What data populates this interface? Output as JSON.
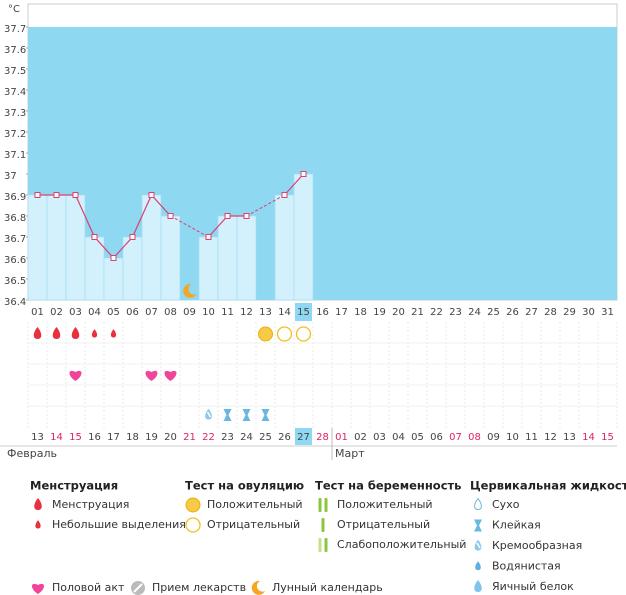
{
  "unit": "°C",
  "chart_data": {
    "type": "line",
    "categories": [
      "01",
      "02",
      "03",
      "04",
      "05",
      "06",
      "07",
      "08",
      "09",
      "10",
      "11",
      "12",
      "13",
      "14",
      "15",
      "16",
      "17",
      "18",
      "19",
      "20",
      "21",
      "22",
      "23",
      "24",
      "25",
      "26",
      "27",
      "28",
      "29",
      "30",
      "31"
    ],
    "values": [
      36.9,
      36.9,
      36.9,
      36.7,
      36.6,
      36.7,
      36.9,
      36.8,
      null,
      36.7,
      36.8,
      36.8,
      null,
      36.9,
      37,
      null,
      null,
      null,
      null,
      null,
      null,
      null,
      null,
      null,
      null,
      null,
      null,
      null,
      null,
      null,
      null
    ],
    "ylim": [
      36.4,
      37.7
    ],
    "yticks": [
      36.4,
      36.5,
      36.6,
      36.7,
      36.8,
      36.9,
      37,
      37.1,
      37.2,
      37.3,
      37.4,
      37.5,
      37.6,
      37.7
    ],
    "color": "#d9416f",
    "highlight_index": 14
  },
  "markers": [
    {
      "day": "01",
      "row": 0,
      "icon": "heavy"
    },
    {
      "day": "02",
      "row": 0,
      "icon": "heavy"
    },
    {
      "day": "03",
      "row": 0,
      "icon": "heavy"
    },
    {
      "day": "04",
      "row": 0,
      "icon": "light"
    },
    {
      "day": "05",
      "row": 0,
      "icon": "light"
    },
    {
      "day": "13",
      "row": 0,
      "icon": "positive"
    },
    {
      "day": "14",
      "row": 0,
      "icon": "negative"
    },
    {
      "day": "15",
      "row": 0,
      "icon": "negative"
    },
    {
      "day": "03",
      "row": 2,
      "icon": "sex"
    },
    {
      "day": "07",
      "row": 2,
      "icon": "sex"
    },
    {
      "day": "08",
      "row": 2,
      "icon": "sex"
    },
    {
      "day": "10",
      "row": 4,
      "icon": "creamy"
    },
    {
      "day": "11",
      "row": 4,
      "icon": "sticky"
    },
    {
      "day": "12",
      "row": 4,
      "icon": "sticky"
    },
    {
      "day": "13",
      "row": 4,
      "icon": "sticky"
    },
    {
      "day": "09",
      "row": -1,
      "icon": "moon"
    }
  ],
  "dates": [
    {
      "label": "13"
    },
    {
      "label": "14",
      "weekend": true
    },
    {
      "label": "15",
      "weekend": true
    },
    {
      "label": "16"
    },
    {
      "label": "17"
    },
    {
      "label": "18"
    },
    {
      "label": "19"
    },
    {
      "label": "20"
    },
    {
      "label": "21",
      "weekend": true
    },
    {
      "label": "22",
      "weekend": true
    },
    {
      "label": "23"
    },
    {
      "label": "24"
    },
    {
      "label": "25"
    },
    {
      "label": "26"
    },
    {
      "label": "27"
    },
    {
      "label": "28",
      "weekend": true
    },
    {
      "label": "01",
      "weekend": true
    },
    {
      "label": "02"
    },
    {
      "label": "03"
    },
    {
      "label": "04"
    },
    {
      "label": "05"
    },
    {
      "label": "06"
    },
    {
      "label": "07",
      "weekend": true
    },
    {
      "label": "08",
      "weekend": true
    },
    {
      "label": "09"
    },
    {
      "label": "10"
    },
    {
      "label": "11"
    },
    {
      "label": "12"
    },
    {
      "label": "13"
    },
    {
      "label": "14",
      "weekend": true
    },
    {
      "label": "15",
      "weekend": true
    }
  ],
  "months": [
    {
      "label": "Февраль",
      "start": 0
    },
    {
      "label": "Март",
      "start": 16
    }
  ],
  "legend": {
    "groups": [
      {
        "title": "Менструация",
        "items": [
          {
            "label": "Менструация",
            "icon": "heavy"
          },
          {
            "label": "Небольшие выделения",
            "icon": "light"
          }
        ]
      },
      {
        "title": "Тест на овуляцию",
        "items": [
          {
            "label": "Положительный",
            "icon": "positive"
          },
          {
            "label": "Отрицательный",
            "icon": "negative"
          }
        ]
      },
      {
        "title": "Тест на беременность",
        "items": [
          {
            "label": "Положительный",
            "icon": "preg_pos"
          },
          {
            "label": "Отрицательный",
            "icon": "preg_neg"
          },
          {
            "label": "Слабоположительный",
            "icon": "preg_weak"
          }
        ]
      },
      {
        "title": "Цервикальная жидкость",
        "items": [
          {
            "label": "Сухо",
            "icon": "dry"
          },
          {
            "label": "Клейкая",
            "icon": "sticky"
          },
          {
            "label": "Кремообразная",
            "icon": "creamy"
          },
          {
            "label": "Водянистая",
            "icon": "watery"
          },
          {
            "label": "Яичный белок",
            "icon": "eggwhite"
          }
        ]
      }
    ],
    "footer": [
      {
        "label": "Половой акт",
        "icon": "sex"
      },
      {
        "label": "Прием лекарств",
        "icon": "pill"
      },
      {
        "label": "Лунный календарь",
        "icon": "moon"
      }
    ]
  }
}
